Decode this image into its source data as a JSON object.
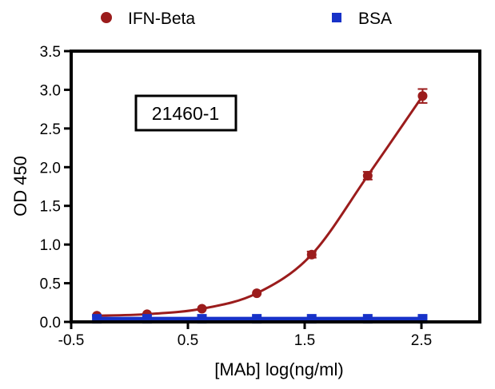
{
  "chart_data": {
    "type": "scatter",
    "title": "",
    "annotation": "21460-1",
    "xlabel": "[MAb] log(ng/ml)",
    "ylabel": "OD 450",
    "xlim": [
      -0.5,
      3.0
    ],
    "ylim": [
      0.0,
      3.5
    ],
    "x_ticks": [
      -0.5,
      0.5,
      1.5,
      2.5
    ],
    "x_tick_labels": [
      "-0.5",
      "0.5",
      "1.5",
      "2.5"
    ],
    "y_ticks": [
      0.0,
      0.5,
      1.0,
      1.5,
      2.0,
      2.5,
      3.0,
      3.5
    ],
    "y_tick_labels": [
      "0.0",
      "0.5",
      "1.0",
      "1.5",
      "2.0",
      "2.5",
      "3.0",
      "3.5"
    ],
    "grid": false,
    "legend_position": "top",
    "series": [
      {
        "name": "IFN-Beta",
        "color": "#9b1c1c",
        "marker": "circle",
        "fit_curve": true,
        "x": [
          -0.28,
          0.15,
          0.62,
          1.09,
          1.56,
          2.04,
          2.51
        ],
        "y": [
          0.08,
          0.1,
          0.17,
          0.37,
          0.87,
          1.89,
          2.92
        ],
        "error": [
          0.02,
          0.02,
          0.02,
          0.03,
          0.04,
          0.05,
          0.09
        ]
      },
      {
        "name": "BSA",
        "color": "#1732c8",
        "marker": "square",
        "fit_curve": false,
        "x": [
          -0.28,
          0.15,
          0.62,
          1.09,
          1.56,
          2.04,
          2.51
        ],
        "y": [
          0.04,
          0.04,
          0.04,
          0.04,
          0.04,
          0.04,
          0.04
        ]
      }
    ]
  }
}
